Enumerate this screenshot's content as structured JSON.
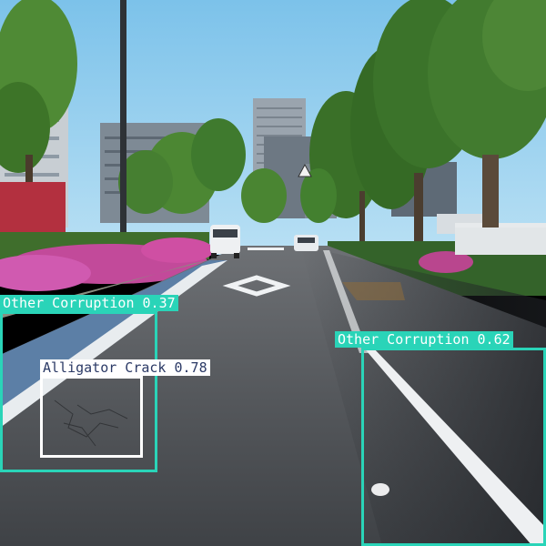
{
  "colors": {
    "other_corruption": "#2ad4b8",
    "alligator_crack": "#ffffff",
    "alligator_crack_label_bg": "#ffffff",
    "alligator_crack_label_text": "#2b3a66",
    "other_corruption_label_text": "#ffffff"
  },
  "detections": [
    {
      "class_name": "Other Corruption",
      "confidence": "0.37",
      "label": "Other Corruption 0.37"
    },
    {
      "class_name": "Alligator Crack",
      "confidence": "0.78",
      "label": "Alligator Crack 0.78"
    },
    {
      "class_name": "Other Corruption",
      "confidence": "0.62",
      "label": "Other Corruption 0.62"
    }
  ],
  "scene": {
    "objects": [
      "sky",
      "trees",
      "buildings",
      "road",
      "lane-markings",
      "diamond-marking",
      "white-van",
      "white-car",
      "street-lamp",
      "flowering-shrubs",
      "warning-sign"
    ]
  }
}
